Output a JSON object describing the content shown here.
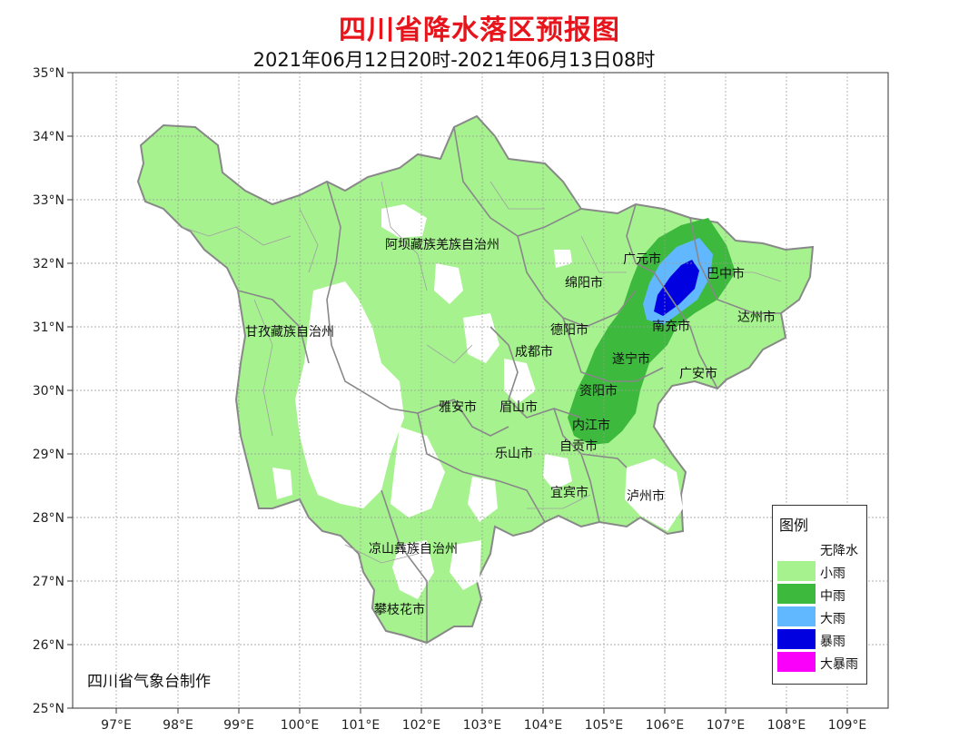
{
  "title": "四川省降水落区预报图",
  "subtitle": "2021年06月12日20时-2021年06月13日08时",
  "credit": "四川省气象台制作",
  "axes": {
    "lat_labels": [
      "35°N",
      "34°N",
      "33°N",
      "32°N",
      "31°N",
      "30°N",
      "29°N",
      "28°N",
      "27°N",
      "26°N",
      "25°N"
    ],
    "lon_labels": [
      "97°E",
      "98°E",
      "99°E",
      "100°E",
      "101°E",
      "102°E",
      "103°E",
      "104°E",
      "105°E",
      "106°E",
      "107°E",
      "108°E",
      "109°E"
    ]
  },
  "places": [
    {
      "name": "阿坝藏族羌族自治州"
    },
    {
      "name": "甘孜藏族自治州"
    },
    {
      "name": "广元市"
    },
    {
      "name": "巴中市"
    },
    {
      "name": "绵阳市"
    },
    {
      "name": "达州市"
    },
    {
      "name": "南充市"
    },
    {
      "name": "德阳市"
    },
    {
      "name": "成都市"
    },
    {
      "name": "遂宁市"
    },
    {
      "name": "广安市"
    },
    {
      "name": "资阳市"
    },
    {
      "name": "雅安市"
    },
    {
      "name": "眉山市"
    },
    {
      "name": "内江市"
    },
    {
      "name": "乐山市"
    },
    {
      "name": "自贡市"
    },
    {
      "name": "宜宾市"
    },
    {
      "name": "泸州市"
    },
    {
      "name": "凉山彝族自治州"
    },
    {
      "name": "攀枝花市"
    }
  ],
  "legend": {
    "title": "图例",
    "items": [
      {
        "label": "无降水",
        "color": "#ffffff"
      },
      {
        "label": "小雨",
        "color": "#a6f28f"
      },
      {
        "label": "中雨",
        "color": "#3dba3d"
      },
      {
        "label": "大雨",
        "color": "#61b8ff"
      },
      {
        "label": "暴雨",
        "color": "#0000e1"
      },
      {
        "label": "大暴雨",
        "color": "#fa00fa"
      }
    ]
  }
}
